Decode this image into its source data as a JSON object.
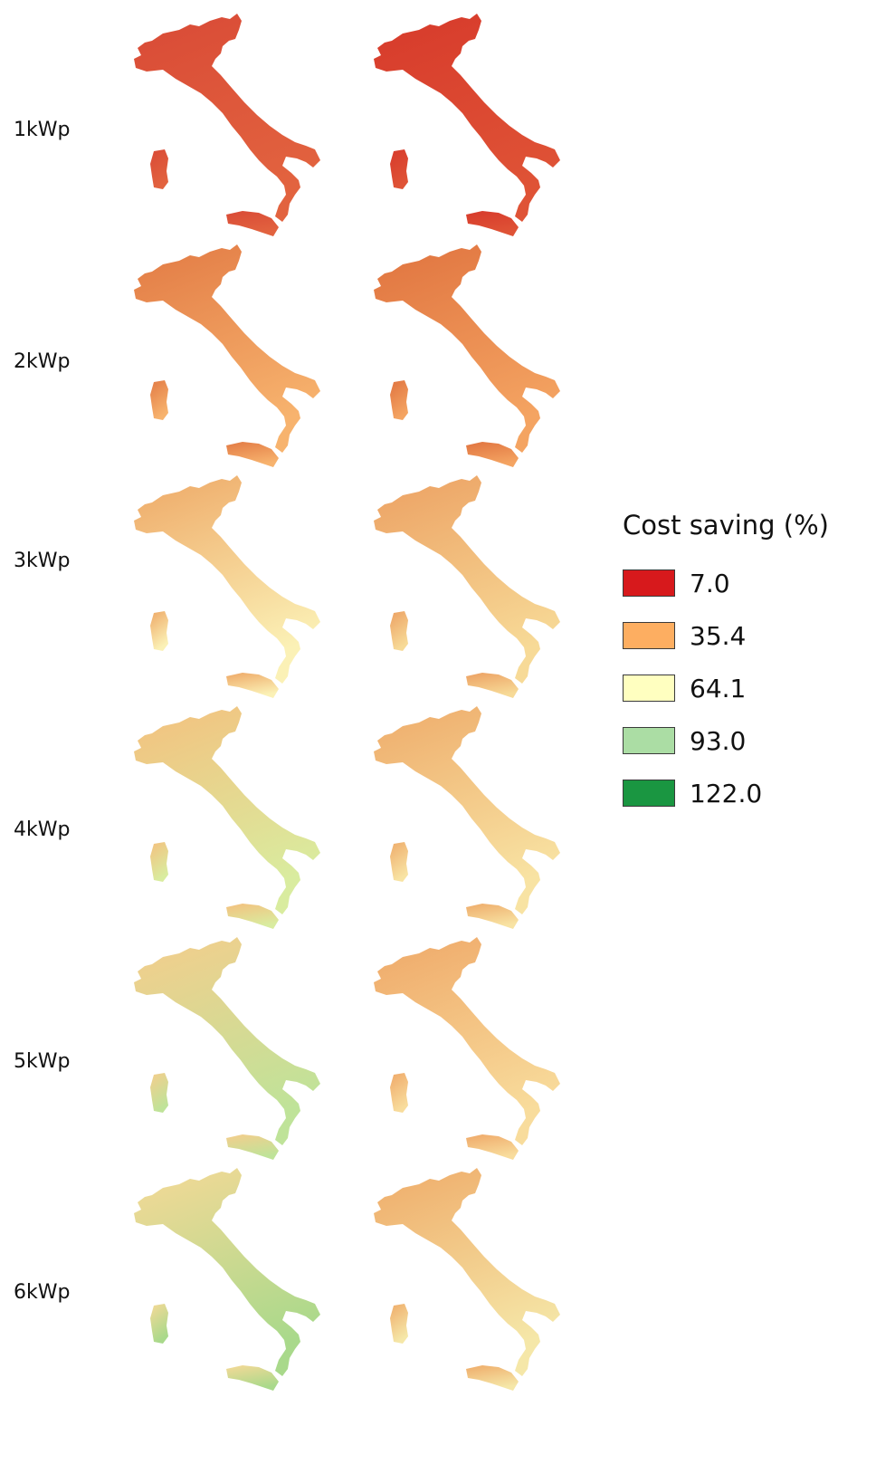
{
  "rows": [
    {
      "label": "1kWp",
      "left": {
        "north": "#d94a36",
        "south": "#e2633f"
      },
      "right": {
        "north": "#d73a2b",
        "south": "#df5336"
      }
    },
    {
      "label": "2kWp",
      "left": {
        "north": "#e27a44",
        "south": "#f7b36e"
      },
      "right": {
        "north": "#e0733f",
        "south": "#f4a462"
      }
    },
    {
      "label": "3kWp",
      "left": {
        "north": "#eea866",
        "south": "#fbf1b6"
      },
      "right": {
        "north": "#eca062",
        "south": "#f7da97"
      }
    },
    {
      "label": "4kWp",
      "left": {
        "north": "#f4c07e",
        "south": "#d9ec9f"
      },
      "right": {
        "north": "#eeab6a",
        "south": "#f8e3a3"
      }
    },
    {
      "label": "5kWp",
      "left": {
        "north": "#f5cd8c",
        "south": "#bfe399"
      },
      "right": {
        "north": "#efa868",
        "south": "#f8dc9c"
      }
    },
    {
      "label": "6kWp",
      "left": {
        "north": "#f6d997",
        "south": "#a9d98b"
      },
      "right": {
        "north": "#efab69",
        "south": "#f5e7a8"
      }
    }
  ],
  "legend": {
    "title": "Cost saving (%)",
    "items": [
      {
        "label": "7.0",
        "color": "#d7191c"
      },
      {
        "label": "35.4",
        "color": "#fdae61"
      },
      {
        "label": "64.1",
        "color": "#ffffc0"
      },
      {
        "label": "93.0",
        "color": "#abdda4"
      },
      {
        "label": "122.0",
        "color": "#1a9641"
      }
    ]
  }
}
